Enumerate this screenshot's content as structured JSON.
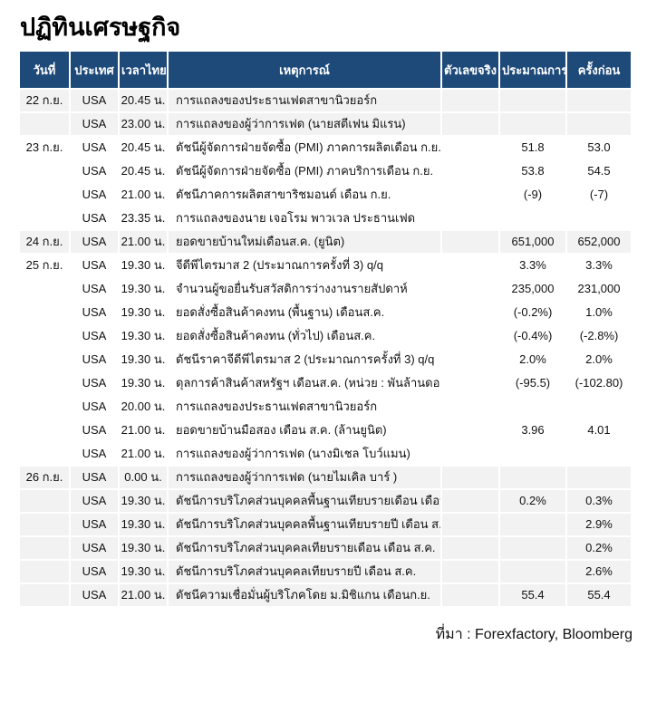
{
  "page_title": "ปฏิทินเศรษฐกิจ",
  "source_note": "ที่มา : Forexfactory, Bloomberg",
  "colors": {
    "header_bg": "#1e4a7a",
    "header_text": "#ffffff",
    "row_alt_bg": "#f2f2f2",
    "row_bg": "#ffffff"
  },
  "table": {
    "columns": [
      "วันที่",
      "ประเทศ",
      "เวลาไทย",
      "เหตุการณ์",
      "ตัวเลขจริง",
      "ประมาณการ",
      "ครั้งก่อน"
    ],
    "rows": [
      {
        "date": "22 ก.ย.",
        "country": "USA",
        "time": "20.45 น.",
        "event": "การแถลงของประธานเฟดสาขานิวยอร์ก",
        "actual": "",
        "forecast": "",
        "previous": ""
      },
      {
        "date": "",
        "country": "USA",
        "time": "23.00 น.",
        "event": "การแถลงของผู้ว่าการเฟด (นายสตีเฟน มิแรน)",
        "actual": "",
        "forecast": "",
        "previous": ""
      },
      {
        "date": "23 ก.ย.",
        "country": "USA",
        "time": "20.45 น.",
        "event": "ดัชนีผู้จัดการฝ่ายจัดซื้อ (PMI) ภาคการผลิตเดือน ก.ย.",
        "actual": "",
        "forecast": "51.8",
        "previous": "53.0"
      },
      {
        "date": "",
        "country": "USA",
        "time": "20.45 น.",
        "event": "ดัชนีผู้จัดการฝ่ายจัดซื้อ (PMI) ภาคบริการเดือน ก.ย.",
        "actual": "",
        "forecast": "53.8",
        "previous": "54.5"
      },
      {
        "date": "",
        "country": "USA",
        "time": "21.00 น.",
        "event": "ดัชนีภาคการผลิตสาขาริชมอนด์ เดือน ก.ย.",
        "actual": "",
        "forecast": "(-9)",
        "previous": "(-7)"
      },
      {
        "date": "",
        "country": "USA",
        "time": "23.35 น.",
        "event": "การแถลงของนาย เจอโรม พาวเวล ประธานเฟด",
        "actual": "",
        "forecast": "",
        "previous": ""
      },
      {
        "date": "24 ก.ย.",
        "country": "USA",
        "time": "21.00 น.",
        "event": "ยอดขายบ้านใหม่เดือนส.ค. (ยูนิต)",
        "actual": "",
        "forecast": "651,000",
        "previous": "652,000"
      },
      {
        "date": "25 ก.ย.",
        "country": "USA",
        "time": "19.30 น.",
        "event": "จีดีพีไตรมาส 2 (ประมาณการครั้งที่ 3) q/q",
        "actual": "",
        "forecast": "3.3%",
        "previous": "3.3%"
      },
      {
        "date": "",
        "country": "USA",
        "time": "19.30 น.",
        "event": "จำนวนผู้ขอยื่นรับสวัสดิการว่างงานรายสัปดาห์",
        "actual": "",
        "forecast": "235,000",
        "previous": "231,000"
      },
      {
        "date": "",
        "country": "USA",
        "time": "19.30 น.",
        "event": "ยอดสั่งซื้อสินค้าคงทน (พื้นฐาน) เดือนส.ค.",
        "actual": "",
        "forecast": "(-0.2%)",
        "previous": "1.0%"
      },
      {
        "date": "",
        "country": "USA",
        "time": "19.30 น.",
        "event": "ยอดสั่งซื้อสินค้าคงทน (ทั่วไป) เดือนส.ค.",
        "actual": "",
        "forecast": "(-0.4%)",
        "previous": "(-2.8%)"
      },
      {
        "date": "",
        "country": "USA",
        "time": "19.30 น.",
        "event": "ดัชนีราคาจีดีพีไตรมาส 2 (ประมาณการครั้งที่ 3) q/q",
        "actual": "",
        "forecast": "2.0%",
        "previous": "2.0%"
      },
      {
        "date": "",
        "country": "USA",
        "time": "19.30 น.",
        "event": "ดุลการค้าสินค้าสหรัฐฯ เดือนส.ค. (หน่วย : พันล้านดอลลาร์)",
        "actual": "",
        "forecast": "(-95.5)",
        "previous": "(-102.80)"
      },
      {
        "date": "",
        "country": "USA",
        "time": "20.00 น.",
        "event": "การแถลงของประธานเฟดสาขานิวยอร์ก",
        "actual": "",
        "forecast": "",
        "previous": ""
      },
      {
        "date": "",
        "country": "USA",
        "time": "21.00 น.",
        "event": "ยอดขายบ้านมือสอง เดือน ส.ค. (ล้านยูนิต)",
        "actual": "",
        "forecast": "3.96",
        "previous": "4.01"
      },
      {
        "date": "",
        "country": "USA",
        "time": "21.00 น.",
        "event": "การแถลงของผู้ว่าการเฟด (นางมิเชล โบว์แมน)",
        "actual": "",
        "forecast": "",
        "previous": ""
      },
      {
        "date": "26 ก.ย.",
        "country": "USA",
        "time": "0.00 น.",
        "event": "การแถลงของผู้ว่าการเฟด (นายไมเคิล บาร์ )",
        "actual": "",
        "forecast": "",
        "previous": ""
      },
      {
        "date": "",
        "country": "USA",
        "time": "19.30 น.",
        "event": "ดัชนีการบริโภคส่วนบุคคลพื้นฐานเทียบรายเดือน เดือน ส.ค.",
        "actual": "",
        "forecast": "0.2%",
        "previous": "0.3%"
      },
      {
        "date": "",
        "country": "USA",
        "time": "19.30 น.",
        "event": "ดัชนีการบริโภคส่วนบุคคลพื้นฐานเทียบรายปี เดือน ส.ค.",
        "actual": "",
        "forecast": "",
        "previous": "2.9%"
      },
      {
        "date": "",
        "country": "USA",
        "time": "19.30 น.",
        "event": "ดัชนีการบริโภคส่วนบุคคลเทียบรายเดือน เดือน ส.ค.",
        "actual": "",
        "forecast": "",
        "previous": "0.2%"
      },
      {
        "date": "",
        "country": "USA",
        "time": "19.30 น.",
        "event": "ดัชนีการบริโภคส่วนบุคคลเทียบรายปี เดือน ส.ค.",
        "actual": "",
        "forecast": "",
        "previous": "2.6%"
      },
      {
        "date": "",
        "country": "USA",
        "time": "21.00 น.",
        "event": "ดัชนีความเชื่อมั่นผู้บริโภคโดย ม.มิชิแกน เดือนก.ย.",
        "actual": "",
        "forecast": "55.4",
        "previous": "55.4"
      }
    ]
  }
}
